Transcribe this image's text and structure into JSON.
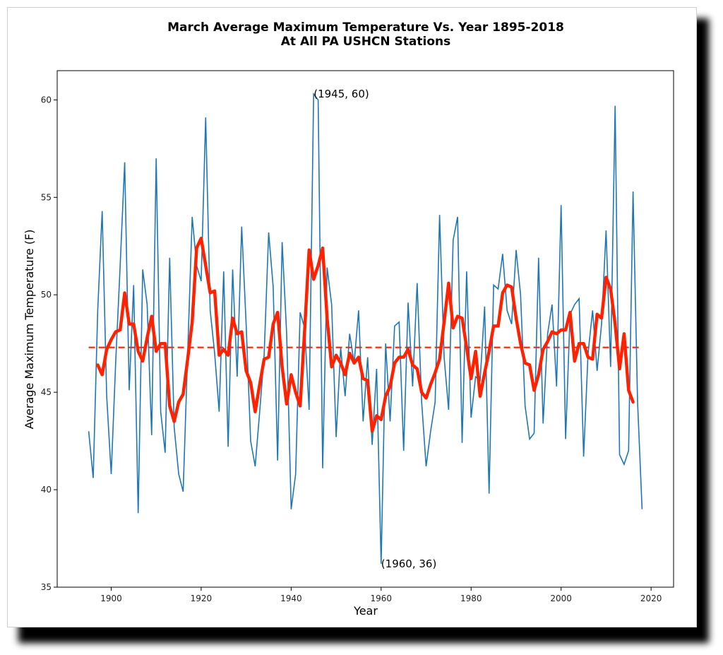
{
  "chart_data": {
    "type": "line",
    "title_line1": "March Average Maximum Temperature Vs. Year 1895-2018",
    "title_line2": "At All PA USHCN Stations",
    "xlabel": "Year",
    "ylabel": "Average Maximum Temperature (F)",
    "xlim": [
      1888,
      2025
    ],
    "ylim": [
      35,
      61.5
    ],
    "xticks": [
      1900,
      1920,
      1940,
      1960,
      1980,
      2000,
      2020
    ],
    "yticks": [
      35,
      40,
      45,
      50,
      55,
      60
    ],
    "grid": false,
    "colors": {
      "raw": "#1f77b4",
      "smooth": "#ff2200",
      "mean": "#ff2200"
    },
    "raw": {
      "x": [
        1895,
        1896,
        1897,
        1898,
        1899,
        1900,
        1901,
        1902,
        1903,
        1904,
        1905,
        1906,
        1907,
        1908,
        1909,
        1910,
        1911,
        1912,
        1913,
        1914,
        1915,
        1916,
        1917,
        1918,
        1919,
        1920,
        1921,
        1922,
        1923,
        1924,
        1925,
        1926,
        1927,
        1928,
        1929,
        1930,
        1931,
        1932,
        1933,
        1934,
        1935,
        1936,
        1937,
        1938,
        1939,
        1940,
        1941,
        1942,
        1943,
        1944,
        1945,
        1946,
        1947,
        1948,
        1949,
        1950,
        1951,
        1952,
        1953,
        1954,
        1955,
        1956,
        1957,
        1958,
        1959,
        1960,
        1961,
        1962,
        1963,
        1964,
        1965,
        1966,
        1967,
        1968,
        1969,
        1970,
        1971,
        1972,
        1973,
        1974,
        1975,
        1976,
        1977,
        1978,
        1979,
        1980,
        1981,
        1982,
        1983,
        1984,
        1985,
        1986,
        1987,
        1988,
        1989,
        1990,
        1991,
        1992,
        1993,
        1994,
        1995,
        1996,
        1997,
        1998,
        1999,
        2000,
        2001,
        2002,
        2003,
        2004,
        2005,
        2006,
        2007,
        2008,
        2009,
        2010,
        2011,
        2012,
        2013,
        2014,
        2015,
        2016,
        2017,
        2018
      ],
      "y": [
        43.0,
        40.6,
        49.2,
        54.3,
        44.8,
        40.8,
        46.5,
        51.5,
        56.8,
        45.1,
        50.5,
        38.8,
        51.3,
        49.5,
        42.8,
        57.0,
        44.0,
        41.9,
        51.9,
        43.2,
        40.8,
        39.9,
        47.0,
        54.0,
        51.5,
        50.7,
        59.1,
        49.2,
        47.0,
        44.0,
        51.2,
        42.2,
        51.3,
        45.8,
        53.5,
        48.5,
        42.5,
        41.2,
        44.0,
        46.9,
        53.2,
        50.4,
        41.5,
        52.7,
        48.0,
        39.0,
        40.8,
        49.1,
        48.3,
        44.1,
        60.3,
        60.0,
        41.1,
        51.4,
        49.5,
        42.7,
        47.3,
        44.8,
        48.0,
        46.5,
        49.2,
        43.5,
        46.8,
        42.3,
        46.2,
        36.2,
        47.5,
        43.5,
        48.4,
        48.6,
        42.0,
        49.6,
        45.3,
        50.6,
        44.5,
        41.2,
        43.0,
        44.5,
        54.1,
        46.8,
        44.1,
        52.8,
        54.0,
        42.4,
        51.2,
        43.7,
        45.8,
        45.6,
        49.4,
        39.8,
        50.5,
        50.3,
        52.1,
        49.2,
        48.5,
        52.3,
        50.0,
        44.3,
        42.6,
        42.9,
        51.9,
        43.4,
        48.0,
        49.5,
        45.3,
        54.6,
        42.6,
        49.0,
        49.5,
        49.8,
        41.7,
        47.0,
        49.2,
        46.1,
        48.5,
        53.3,
        46.3,
        59.7,
        41.8,
        41.3,
        42.0,
        55.3,
        44.5,
        39.0
      ]
    },
    "smooth": {
      "x": [
        1897,
        1898,
        1899,
        1900,
        1901,
        1902,
        1903,
        1904,
        1905,
        1906,
        1907,
        1908,
        1909,
        1910,
        1911,
        1912,
        1913,
        1914,
        1915,
        1916,
        1917,
        1918,
        1919,
        1920,
        1921,
        1922,
        1923,
        1924,
        1925,
        1926,
        1927,
        1928,
        1929,
        1930,
        1931,
        1932,
        1933,
        1934,
        1935,
        1936,
        1937,
        1938,
        1939,
        1940,
        1941,
        1942,
        1943,
        1944,
        1945,
        1946,
        1947,
        1948,
        1949,
        1950,
        1951,
        1952,
        1953,
        1954,
        1955,
        1956,
        1957,
        1958,
        1959,
        1960,
        1961,
        1962,
        1963,
        1964,
        1965,
        1966,
        1967,
        1968,
        1969,
        1970,
        1971,
        1972,
        1973,
        1974,
        1975,
        1976,
        1977,
        1978,
        1979,
        1980,
        1981,
        1982,
        1983,
        1984,
        1985,
        1986,
        1987,
        1988,
        1989,
        1990,
        1991,
        1992,
        1993,
        1994,
        1995,
        1996,
        1997,
        1998,
        1999,
        2000,
        2001,
        2002,
        2003,
        2004,
        2005,
        2006,
        2007,
        2008,
        2009,
        2010,
        2011,
        2012,
        2013,
        2014,
        2015,
        2016
      ],
      "y": [
        46.4,
        45.9,
        47.2,
        47.7,
        48.1,
        48.2,
        50.1,
        48.5,
        48.5,
        47.1,
        46.6,
        47.8,
        48.9,
        47.1,
        47.5,
        47.5,
        44.3,
        43.5,
        44.5,
        44.9,
        46.7,
        48.6,
        52.4,
        52.9,
        51.5,
        50.1,
        50.2,
        46.9,
        47.2,
        46.9,
        48.8,
        48.0,
        48.1,
        46.1,
        45.5,
        44.0,
        45.4,
        46.7,
        46.8,
        48.5,
        49.1,
        46.3,
        44.4,
        45.9,
        45.0,
        44.3,
        48.2,
        52.3,
        50.8,
        51.5,
        52.4,
        48.8,
        46.3,
        46.9,
        46.5,
        45.9,
        47.0,
        46.5,
        46.8,
        45.7,
        45.6,
        43.0,
        43.8,
        43.6,
        44.8,
        45.3,
        46.5,
        46.8,
        46.8,
        47.2,
        46.4,
        46.2,
        45.0,
        44.7,
        45.4,
        46.0,
        46.7,
        48.6,
        50.6,
        48.3,
        48.9,
        48.8,
        47.3,
        45.7,
        47.1,
        44.8,
        46.0,
        47.1,
        48.4,
        48.4,
        50.1,
        50.5,
        50.4,
        48.8,
        47.5,
        46.5,
        46.4,
        45.1,
        45.9,
        47.2,
        47.6,
        48.1,
        48.0,
        48.2,
        48.2,
        49.1,
        46.6,
        47.5,
        47.5,
        46.8,
        46.7,
        49.0,
        48.8,
        50.9,
        50.3,
        48.5,
        46.2,
        48.0,
        45.1,
        44.5
      ]
    },
    "mean": {
      "value": 47.3,
      "x_range": [
        1895,
        2018
      ]
    },
    "annotations": [
      {
        "text": "(1945, 60)",
        "x": 1945,
        "y": 60.3
      },
      {
        "text": "(1960, 36)",
        "x": 1960,
        "y": 36.2
      }
    ]
  }
}
